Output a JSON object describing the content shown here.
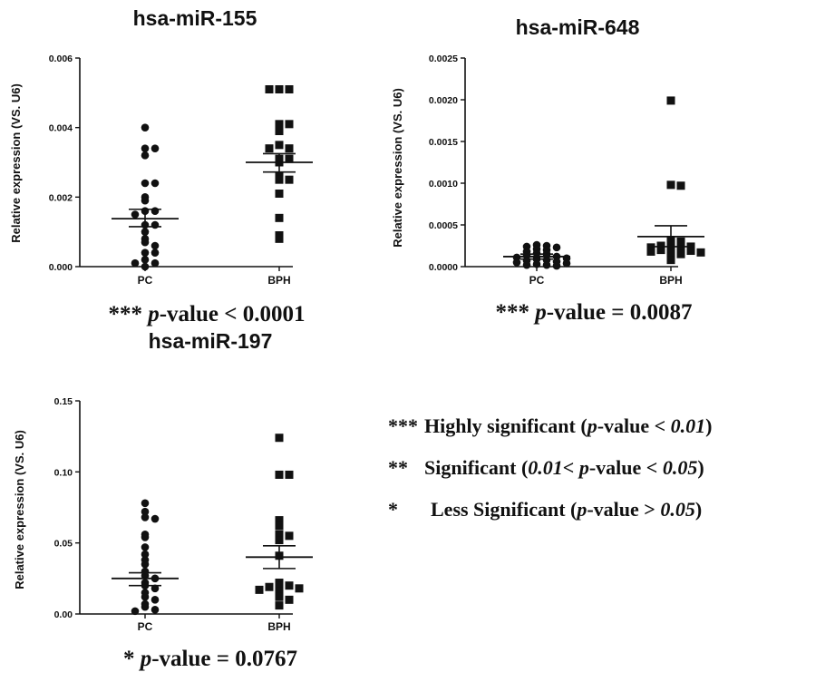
{
  "chart_data": [
    {
      "type": "scatter",
      "title": "hsa-miR-155",
      "ylabel": "Relative expression (VS. U6)",
      "categories": [
        "PC",
        "BPH"
      ],
      "ylim": [
        0,
        0.006
      ],
      "yticks": [
        "0.000",
        "0.002",
        "0.004",
        "0.006"
      ],
      "series": [
        {
          "category": "PC",
          "marker": "circle",
          "mean": 0.00138,
          "sem_upper": 0.00165,
          "sem_lower": 0.00115,
          "values": [
            0.004,
            0.0034,
            0.0034,
            0.0032,
            0.0024,
            0.0024,
            0.002,
            0.0019,
            0.0016,
            0.0016,
            0.0015,
            0.0012,
            0.0012,
            0.001,
            0.0008,
            0.0007,
            0.0006,
            0.0004,
            0.0004,
            0.0002,
            0.0001,
            0.0001,
            0.0
          ]
        },
        {
          "category": "BPH",
          "marker": "square",
          "mean": 0.003,
          "sem_upper": 0.00325,
          "sem_lower": 0.00272,
          "values": [
            0.0051,
            0.0051,
            0.0051,
            0.0041,
            0.0041,
            0.0039,
            0.0035,
            0.0034,
            0.0034,
            0.0031,
            0.0031,
            0.003,
            0.0026,
            0.0025,
            0.0025,
            0.0021,
            0.0014,
            0.0009,
            0.0008
          ]
        }
      ]
    },
    {
      "type": "scatter",
      "title": "hsa-miR-648",
      "ylabel": "Relative expression (VS. U6)",
      "categories": [
        "PC",
        "BPH"
      ],
      "ylim": [
        0,
        0.0025
      ],
      "yticks": [
        "0.0000",
        "0.0005",
        "0.0010",
        "0.0015",
        "0.0020",
        "0.0025"
      ],
      "series": [
        {
          "category": "PC",
          "marker": "circle",
          "mean": 0.00012,
          "sem_upper": 0.00015,
          "sem_lower": 9e-05,
          "values": [
            0.00026,
            0.00025,
            0.00024,
            0.00023,
            0.00021,
            0.0002,
            0.00018,
            0.00016,
            0.00015,
            0.00013,
            0.00012,
            0.00011,
            0.0001,
            9e-05,
            8e-05,
            7e-05,
            6e-05,
            5e-05,
            4e-05,
            3e-05,
            2e-05,
            2e-05,
            1e-05
          ]
        },
        {
          "category": "BPH",
          "marker": "square",
          "mean": 0.00036,
          "sem_upper": 0.00049,
          "sem_lower": 0.00024,
          "values": [
            0.00199,
            0.00098,
            0.00097,
            0.00032,
            0.0003,
            0.00028,
            0.00027,
            0.00025,
            0.00024,
            0.00023,
            0.00022,
            0.00021,
            0.0002,
            0.00019,
            0.00018,
            0.00017,
            0.00016,
            0.00015,
            8e-05
          ]
        }
      ]
    },
    {
      "type": "scatter",
      "title": "hsa-miR-197",
      "ylabel": "Relative expression (VS. U6)",
      "categories": [
        "PC",
        "BPH"
      ],
      "ylim": [
        0,
        0.15
      ],
      "yticks": [
        "0.00",
        "0.05",
        "0.10",
        "0.15"
      ],
      "series": [
        {
          "category": "PC",
          "marker": "circle",
          "mean": 0.025,
          "sem_upper": 0.029,
          "sem_lower": 0.02,
          "values": [
            0.078,
            0.072,
            0.068,
            0.067,
            0.056,
            0.054,
            0.047,
            0.042,
            0.038,
            0.035,
            0.03,
            0.027,
            0.025,
            0.022,
            0.02,
            0.018,
            0.015,
            0.012,
            0.01,
            0.007,
            0.005,
            0.003,
            0.002
          ]
        },
        {
          "category": "BPH",
          "marker": "square",
          "mean": 0.04,
          "sem_upper": 0.048,
          "sem_lower": 0.032,
          "values": [
            0.124,
            0.098,
            0.098,
            0.066,
            0.062,
            0.056,
            0.055,
            0.052,
            0.041,
            0.022,
            0.02,
            0.02,
            0.019,
            0.018,
            0.017,
            0.016,
            0.012,
            0.01,
            0.006
          ]
        }
      ]
    }
  ],
  "pvalues": [
    {
      "stars": "***",
      "p": "p",
      "text": "-value < 0.0001"
    },
    {
      "stars": "***",
      "p": "p",
      "text": "-value = 0.0087"
    },
    {
      "stars": "*",
      "p": "p",
      "text": "-value = 0.0767"
    }
  ],
  "legend": [
    {
      "stars": "***",
      "label": "Highly significant (",
      "p": "p",
      "mid": "-value < ",
      "val": "0.01",
      "end": ")"
    },
    {
      "stars": "**",
      "label": "Significant (",
      "p": "0.01",
      "mid": "< ",
      "p2": "p",
      "mid2": "-value < ",
      "val": "0.05",
      "end": ")"
    },
    {
      "stars": "*",
      "label": "Less Significant (",
      "p": "p",
      "mid": "-value > ",
      "val": "0.05",
      "end": ")"
    }
  ]
}
